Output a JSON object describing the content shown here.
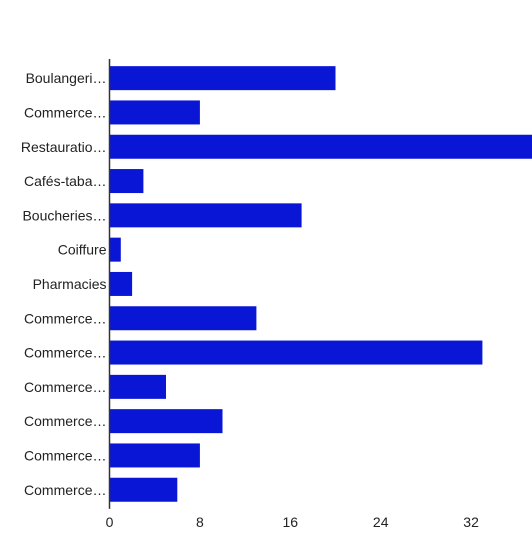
{
  "chart_data": {
    "type": "bar",
    "orientation": "horizontal",
    "categories": [
      "Boulangeri…",
      "Commerce…",
      "Restauratio…",
      "Cafés-taba…",
      "Boucheries…",
      "Coiffure",
      "Pharmacies",
      "Commerce…",
      "Commerce…",
      "Commerce…",
      "Commerce…",
      "Commerce…",
      "Commerce…"
    ],
    "values": [
      20,
      8,
      38,
      3,
      17,
      1,
      2,
      13,
      33,
      5,
      10,
      8,
      6
    ],
    "xlim": [
      0,
      38
    ],
    "xticks": [
      0,
      8,
      16,
      24,
      32
    ],
    "grid": false,
    "bar_color": "#0a16d6"
  }
}
